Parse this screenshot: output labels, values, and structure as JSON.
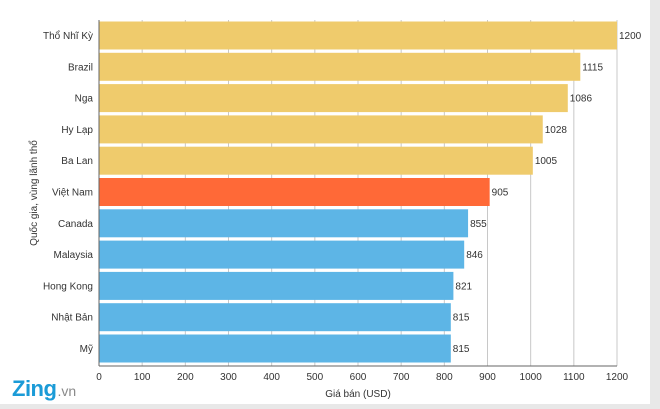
{
  "chart_data": {
    "type": "bar",
    "orientation": "horizontal",
    "categories": [
      "Thổ Nhĩ Kỳ",
      "Brazil",
      "Nga",
      "Hy Lạp",
      "Ba Lan",
      "Việt Nam",
      "Canada",
      "Malaysia",
      "Hong Kong",
      "Nhật Bản",
      "Mỹ"
    ],
    "values": [
      1200,
      1115,
      1086,
      1028,
      1005,
      905,
      855,
      846,
      821,
      815,
      815
    ],
    "value_labels": [
      "1200",
      "1115",
      "1086",
      "1028",
      "1005",
      "905",
      "855",
      "846",
      "821",
      "815",
      "815"
    ],
    "bar_colors": [
      "#efcb6c",
      "#efcb6c",
      "#efcb6c",
      "#efcb6c",
      "#efcb6c",
      "#ff6937",
      "#5db5e6",
      "#5db5e6",
      "#5db5e6",
      "#5db5e6",
      "#5db5e6"
    ],
    "xlabel": "Giá bán (USD)",
    "ylabel": "Quốc gia, vùng lãnh thổ",
    "xlim": [
      0,
      1200
    ],
    "x_ticks": [
      0,
      100,
      200,
      300,
      400,
      500,
      600,
      700,
      800,
      900,
      1000,
      1100,
      1200
    ],
    "x_tick_labels": [
      "0",
      "100",
      "200",
      "300",
      "400",
      "500",
      "600",
      "700",
      "800",
      "900",
      "1000",
      "1100",
      "1200"
    ],
    "grid": "vertical",
    "legend": "none"
  },
  "branding": {
    "logo_main": "Zing",
    "logo_suffix": ".vn"
  },
  "colors": {
    "grid": "#c8c8c8",
    "axis": "#666666",
    "background": "#ffffff"
  }
}
